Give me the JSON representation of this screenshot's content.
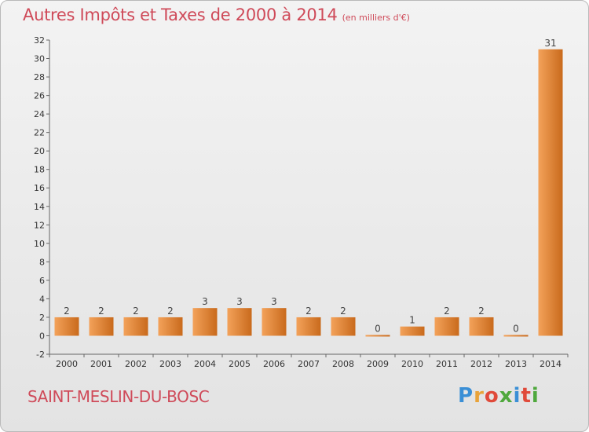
{
  "header": {
    "title": "Autres Impôts et Taxes de 2000 à 2014",
    "subtitle": "(en milliers d'€)"
  },
  "footer": {
    "commune": "SAINT-MESLIN-DU-BOSC",
    "brand_letters": [
      "P",
      "r",
      "o",
      "x",
      "i",
      "t",
      "i"
    ],
    "brand_colors": [
      "#3a8fd6",
      "#e8a33a",
      "#e04a3a",
      "#4fa83d",
      "#3a8fd6",
      "#e04a3a",
      "#4fa83d"
    ]
  },
  "chart_data": {
    "type": "bar",
    "title": "Autres Impôts et Taxes de 2000 à 2014",
    "subtitle": "(en milliers d'€)",
    "xlabel": "",
    "ylabel": "",
    "categories": [
      "2000",
      "2001",
      "2002",
      "2003",
      "2004",
      "2005",
      "2006",
      "2007",
      "2008",
      "2009",
      "2010",
      "2011",
      "2012",
      "2013",
      "2014"
    ],
    "values": [
      2,
      2,
      2,
      2,
      3,
      3,
      3,
      2,
      2,
      0,
      1,
      2,
      2,
      0,
      31
    ],
    "data_labels": [
      "2",
      "2",
      "2",
      "2",
      "3",
      "3",
      "3",
      "2",
      "2",
      "0",
      "1",
      "2",
      "2",
      "0",
      "31"
    ],
    "ylim": [
      -2,
      32
    ],
    "yticks": [
      -2,
      0,
      2,
      4,
      6,
      8,
      10,
      12,
      14,
      16,
      18,
      20,
      22,
      24,
      26,
      28,
      30,
      32
    ],
    "grid": false,
    "bar_color_light": "#f3a25a",
    "bar_color_dark": "#c96a1c",
    "axis_color": "#666666"
  }
}
